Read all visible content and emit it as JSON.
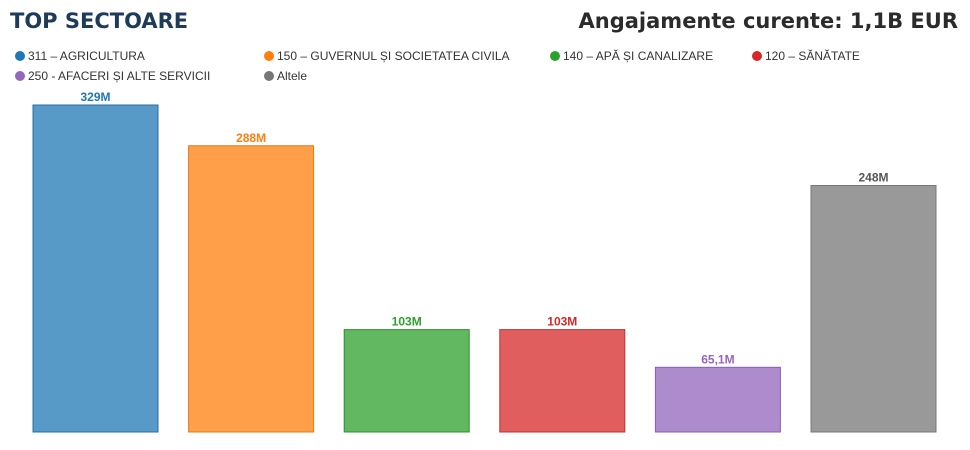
{
  "header": {
    "title": "TOP SECTOARE",
    "total_label": "Angajamente curente: 1,1B EUR"
  },
  "chart_data": {
    "type": "bar",
    "title": "TOP SECTOARE",
    "xlabel": "",
    "ylabel": "",
    "ylim": [
      0,
      329
    ],
    "grid": false,
    "legend_position": "top",
    "categories": [
      "311 – AGRICULTURA",
      "150 – GUVERNUL ȘI SOCIETATEA CIVILA",
      "140 – APĂ ȘI CANALIZARE",
      "120 – SĂNĂTATE",
      "250 - AFACERI ȘI ALTE SERVICII",
      "Altele"
    ],
    "values": [
      329,
      288,
      103,
      103,
      65.1,
      248
    ],
    "data_labels": [
      "329M",
      "288M",
      "103M",
      "103M",
      "65,1M",
      "248M"
    ],
    "colors": {
      "fills": [
        "#5799c7",
        "#ff9f4a",
        "#61b861",
        "#e05e5e",
        "#ad8bcc",
        "#999999"
      ],
      "strokes": [
        "#2a6ea6",
        "#e07b1a",
        "#2e8f2e",
        "#c23030",
        "#8a5fb3",
        "#777777"
      ],
      "labels": [
        "#1f77b4",
        "#ff7f0e",
        "#2ca02c",
        "#d62728",
        "#9467bd",
        "#555555"
      ]
    }
  }
}
